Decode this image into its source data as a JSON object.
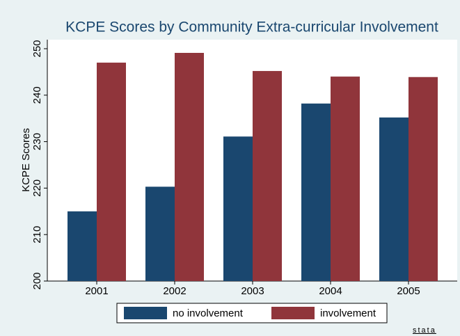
{
  "chart_data": {
    "type": "bar",
    "title": "KCPE Scores by Community Extra-curricular Involvement",
    "y_label": "KCPE Scores",
    "categories": [
      "2001",
      "2002",
      "2003",
      "2004",
      "2005"
    ],
    "series": [
      {
        "name": "no involvement",
        "color": "#1a476f",
        "values": [
          215,
          220.3,
          231.1,
          238.2,
          235.2
        ]
      },
      {
        "name": "involvement",
        "color": "#90353b",
        "values": [
          247,
          249.1,
          245.2,
          244,
          243.9
        ]
      }
    ],
    "ylim": [
      200,
      250
    ],
    "yticks": [
      200,
      210,
      220,
      230,
      240,
      250
    ],
    "grid": false,
    "legend": "bottom",
    "logo": "stata"
  }
}
